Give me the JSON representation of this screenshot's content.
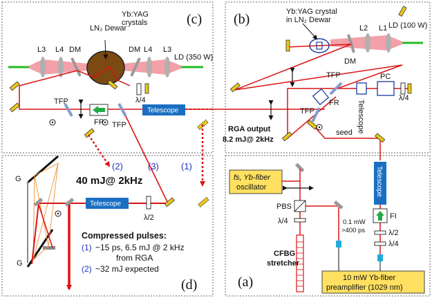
{
  "panels": {
    "a": "(a)",
    "b": "(b)",
    "c": "(c)",
    "d": "(d)"
  },
  "panel_c": {
    "ln2_dewar": "LN₂ Dewar",
    "crystals_line1": "Yb:YAG",
    "crystals_line2": "crystals",
    "l3": "L3",
    "l4": "L4",
    "dm": "DM",
    "ld": "LD (350 W)",
    "tfp": "TFP",
    "fr": "FR",
    "quarter_wave": "λ/4",
    "telescope": "Telescope"
  },
  "panel_b": {
    "crystal_line1": "Yb:YAG crystal",
    "crystal_line2": "in LN₂ Dewar",
    "l1": "L1",
    "l2": "L2",
    "dm": "DM",
    "ld": "LD (100 W)",
    "tfp": "TFP",
    "pc": "PC",
    "fr": "FR",
    "telescope": "Telescope",
    "quarter_wave": "λ/4",
    "seed": "seed",
    "rga_line1": "RGA output",
    "rga_line2": "8.2 mJ@ 2kHz"
  },
  "panel_d": {
    "beam1": "(1)",
    "beam2": "(2)",
    "beam3": "(3)",
    "energy": "40 mJ@ 2kHz",
    "grating": "G",
    "telescope": "Telescope",
    "half_wave": "λ/2",
    "compressed_title": "Compressed pulses:",
    "item1_num": "(1)",
    "item1_text": "~15 ps, 6.5 mJ @ 2 kHz",
    "item1_text2": "from RGA",
    "item2_num": "(2)",
    "item2_text": "~32 mJ expected"
  },
  "panel_a": {
    "osc_line1": "fs, Yb-fiber",
    "osc_line2": "oscillator",
    "pbs": "PBS",
    "quarter_wave": "λ/4",
    "cfbg_line1": "CFBG",
    "cfbg_line2": "stretcher",
    "power_line1": "0.1 mW",
    "power_line2": ">400 ps",
    "telescope": "Telescope",
    "fi": "FI",
    "half_wave": "λ/2",
    "quarter_wave2": "λ/4",
    "preamp_line1": "10 mW Yb-fiber",
    "preamp_line2": "preamplifier (1029 nm)"
  },
  "colors": {
    "beam": "#dd1111",
    "pump": "#f4a0a8",
    "fiber": "#22bb22",
    "mirror": "#e8c818",
    "telescope": "#1a6fc2",
    "box": "#ffe060",
    "dewar": "#7a4a12",
    "label_blue": "#2233bb"
  }
}
